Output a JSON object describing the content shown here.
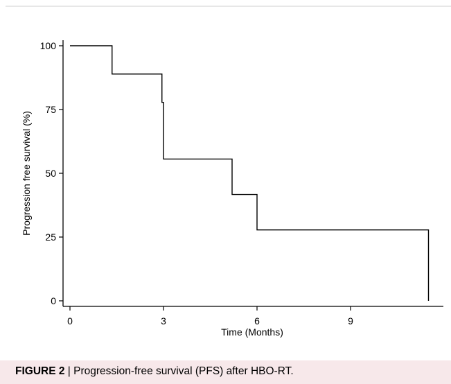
{
  "chart_data": {
    "type": "line",
    "step": true,
    "xlabel": "Time (Months)",
    "ylabel": "Progression free survival (%)",
    "xlim": [
      0,
      11.5
    ],
    "ylim": [
      0,
      100
    ],
    "x_ticks": [
      0,
      3,
      6,
      9
    ],
    "y_ticks": [
      0,
      25,
      50,
      75,
      100
    ],
    "grid": false,
    "series": [
      {
        "x": [
          0,
          1.35,
          2.95,
          3.0,
          5.2,
          6.0,
          11.5,
          11.5
        ],
        "y": [
          100,
          88.9,
          77.8,
          55.6,
          41.7,
          27.8,
          27.8,
          0
        ]
      }
    ]
  },
  "caption": {
    "label": "FIGURE 2",
    "separator": " | ",
    "text": "Progression-free survival (PFS) after HBO-RT."
  },
  "colors": {
    "line": "#000000",
    "caption_background": "#f7e8ea"
  }
}
